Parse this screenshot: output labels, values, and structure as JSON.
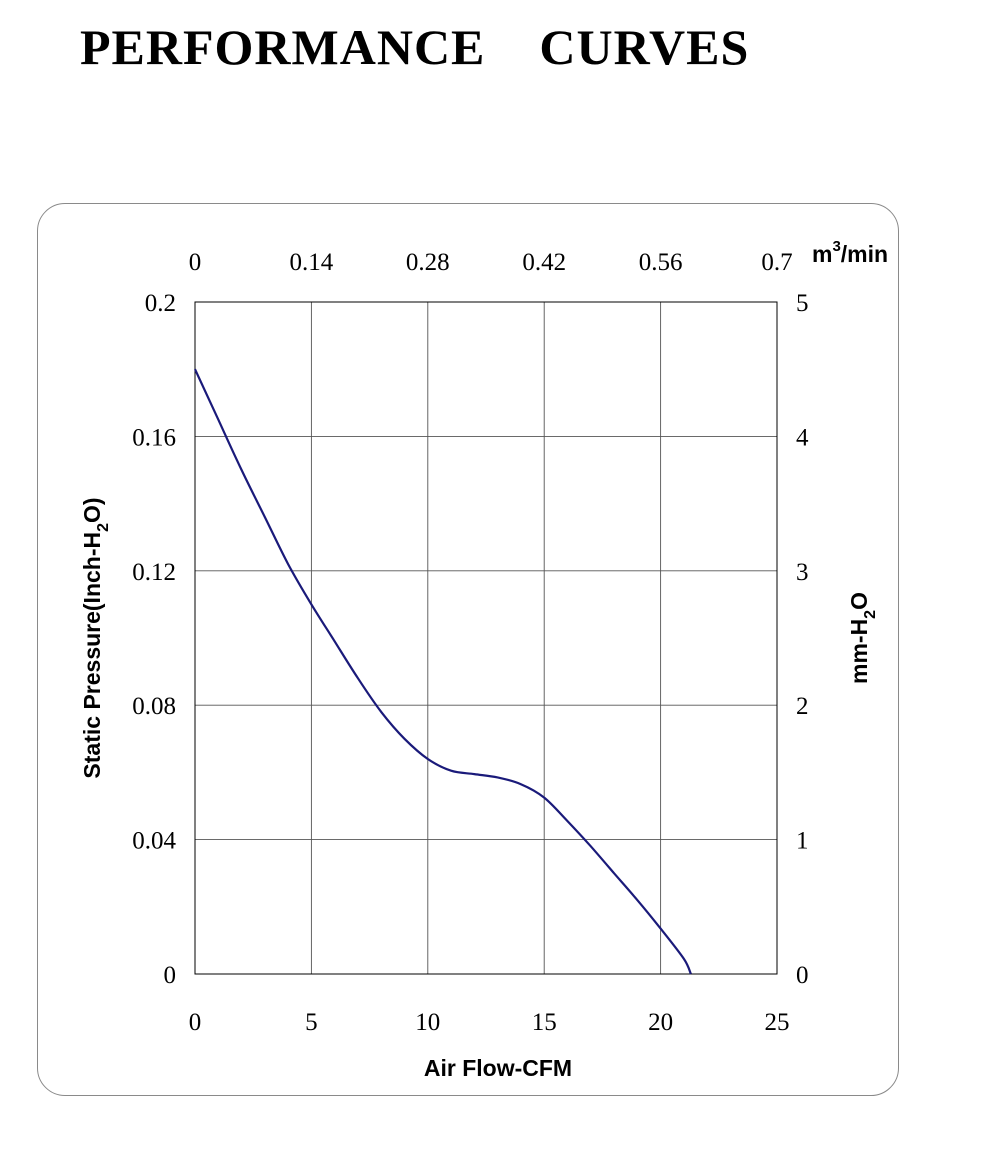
{
  "title_left": "PERFORMANCE",
  "title_right": "CURVES",
  "chart_data": {
    "type": "line",
    "xlabel": "Air Flow-CFM",
    "ylabel": "Static Pressure(Inch-H",
    "ylabel_sub": "2",
    "ylabel_end": "O)",
    "y2label": "mm-H",
    "y2label_sub": "2",
    "y2label_end": "O",
    "x2label": "m",
    "x2label_sup": "3",
    "x2label_end": "/min",
    "xlim": [
      0,
      25
    ],
    "ylim": [
      0,
      0.2
    ],
    "x_ticks": [
      "0",
      "5",
      "10",
      "15",
      "20",
      "25"
    ],
    "y_ticks": [
      "0",
      "0.04",
      "0.08",
      "0.12",
      "0.16",
      "0.2"
    ],
    "x2_ticks": [
      "0",
      "0.14",
      "0.28",
      "0.42",
      "0.56",
      "0.7"
    ],
    "y2_ticks": [
      "0",
      "1",
      "2",
      "3",
      "4",
      "5"
    ],
    "grid": true,
    "line_color": "#1a1a7a",
    "series": [
      {
        "x": [
          0,
          1,
          2,
          3,
          4,
          5,
          6,
          7,
          8,
          9,
          10,
          11,
          12,
          13,
          14,
          15,
          16,
          17,
          18,
          19,
          20,
          21,
          21.3
        ],
        "y": [
          0.18,
          0.165,
          0.15,
          0.136,
          0.122,
          0.11,
          0.099,
          0.088,
          0.078,
          0.07,
          0.064,
          0.0605,
          0.0595,
          0.0585,
          0.0565,
          0.0525,
          0.0455,
          0.038,
          0.03,
          0.022,
          0.0135,
          0.0045,
          0.0
        ]
      }
    ]
  }
}
